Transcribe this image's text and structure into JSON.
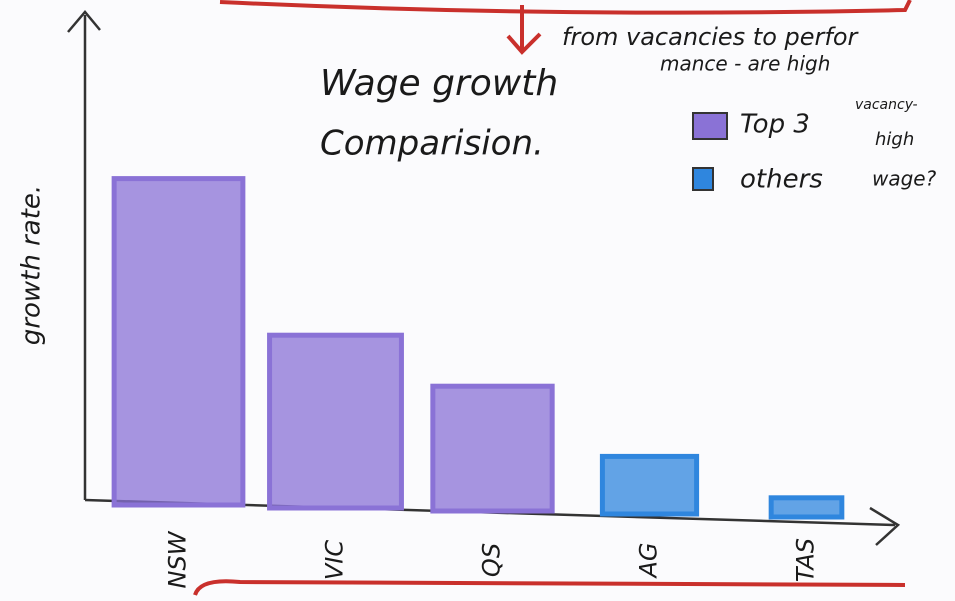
{
  "chart_data": {
    "type": "bar",
    "title": [
      "Wage growth",
      "Comparision."
    ],
    "ylabel": "growth rate.",
    "annotation": [
      "from vacancies to perfor",
      "mance - are high",
      "vacancy-",
      "high",
      "wage?"
    ],
    "categories": [
      "NSW",
      "VIC",
      "QS",
      "AG",
      "TAS"
    ],
    "series": [
      {
        "name": "Top 3",
        "color": "#8a72d6",
        "values": [
          68,
          36,
          26,
          null,
          null
        ]
      },
      {
        "name": "others",
        "color": "#2f86de",
        "values": [
          null,
          null,
          null,
          12,
          4
        ]
      }
    ],
    "ylim": [
      0,
      100
    ]
  }
}
